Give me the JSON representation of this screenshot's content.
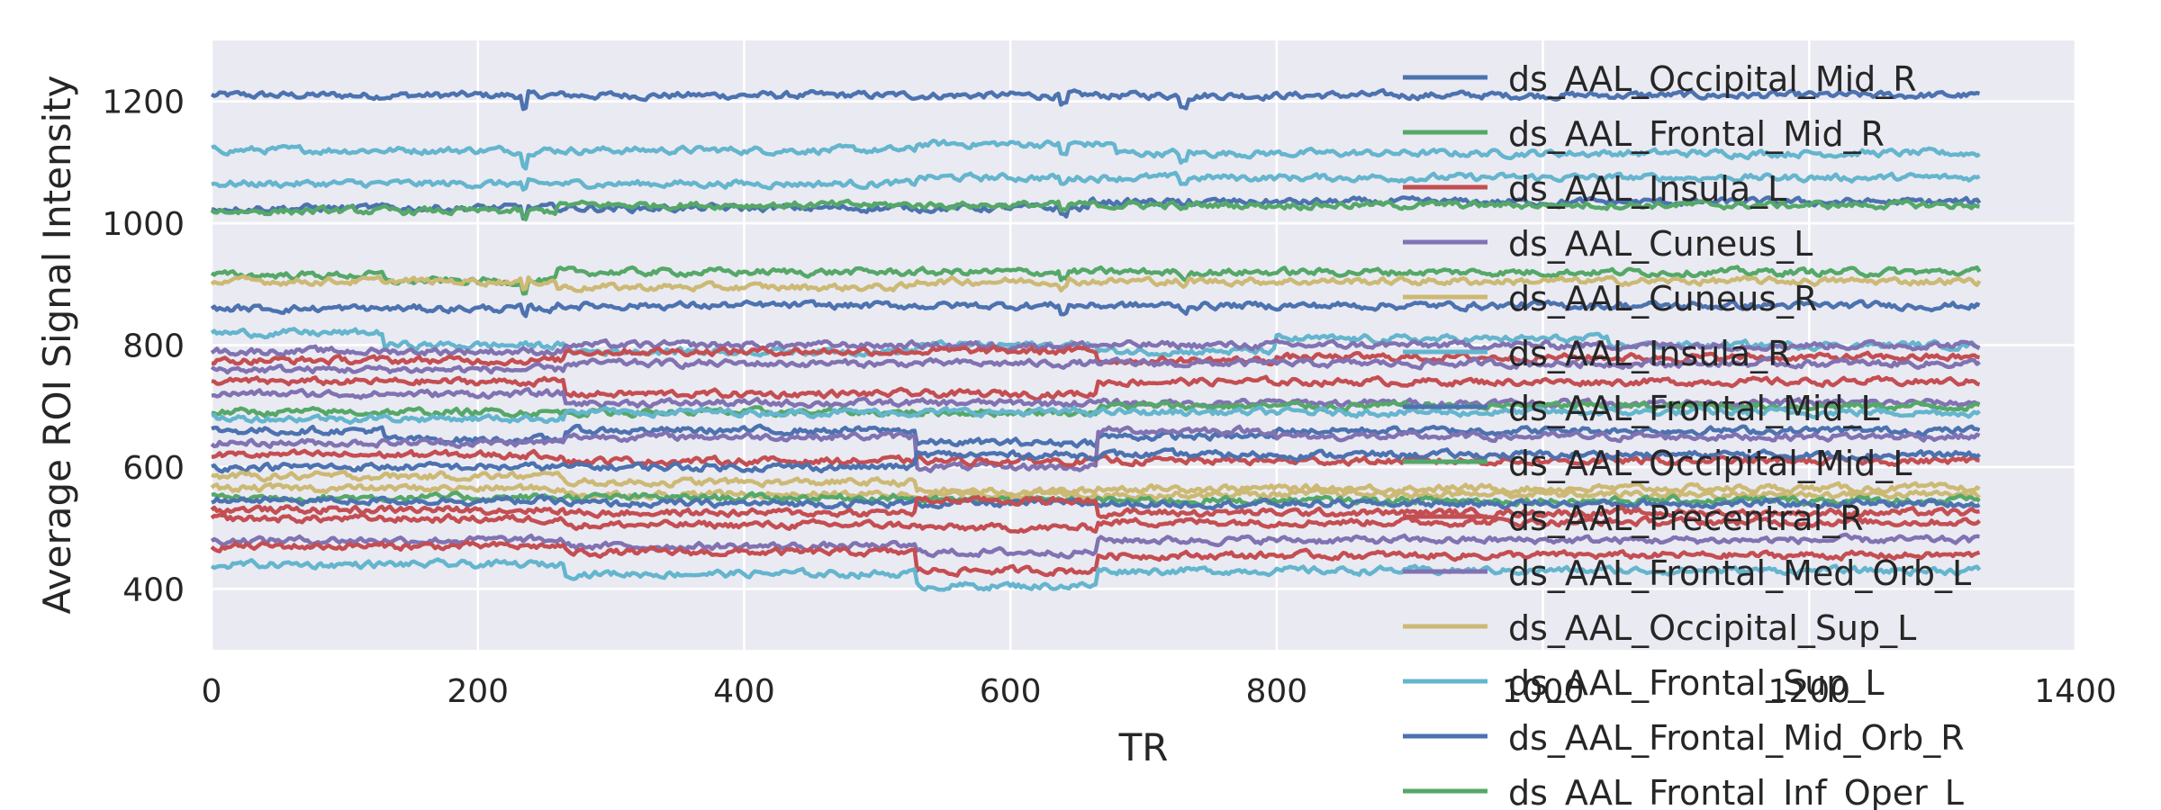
{
  "chart_data": {
    "type": "line",
    "title": "",
    "xlabel": "TR",
    "ylabel": "Average ROI Signal Intensity",
    "xlim": [
      0,
      1400
    ],
    "ylim": [
      300,
      1300
    ],
    "xticks": [
      0,
      200,
      400,
      600,
      800,
      1000,
      1200,
      1400
    ],
    "yticks": [
      400,
      600,
      800,
      1000,
      1200
    ],
    "grid": true,
    "legend_position": "right, overflowing the plot area",
    "n_timepoints": 1330,
    "palette": [
      "#4c72b0",
      "#55a868",
      "#c44e52",
      "#8172b2",
      "#ccb974",
      "#64b5cd"
    ],
    "legend_entries": [
      {
        "name": "ds_AAL_Occipital_Mid_R",
        "color": "#4c72b0"
      },
      {
        "name": "ds_AAL_Frontal_Mid_R",
        "color": "#55a868"
      },
      {
        "name": "ds_AAL_Insula_L",
        "color": "#c44e52"
      },
      {
        "name": "ds_AAL_Cuneus_L",
        "color": "#8172b2"
      },
      {
        "name": "ds_AAL_Cuneus_R",
        "color": "#ccb974"
      },
      {
        "name": "ds_AAL_Insula_R",
        "color": "#64b5cd"
      },
      {
        "name": "ds_AAL_Frontal_Mid_L",
        "color": "#4c72b0"
      },
      {
        "name": "ds_AAL_Occipital_Mid_L",
        "color": "#55a868"
      },
      {
        "name": "ds_AAL_Precentral_R",
        "color": "#c44e52"
      },
      {
        "name": "ds_AAL_Frontal_Med_Orb_L",
        "color": "#8172b2"
      },
      {
        "name": "ds_AAL_Occipital_Sup_L",
        "color": "#ccb974"
      },
      {
        "name": "ds_AAL_Frontal_Sup_L",
        "color": "#64b5cd"
      },
      {
        "name": "ds_AAL_Frontal_Mid_Orb_R",
        "color": "#4c72b0"
      },
      {
        "name": "ds_AAL_Frontal_Inf_Oper_L",
        "color": "#55a868"
      }
    ],
    "series_levels": [
      {
        "color": "#4c72b0",
        "base": 1210,
        "segments": []
      },
      {
        "color": "#64b5cd",
        "base": 1120,
        "segments": [
          [
            530,
            680,
            1130
          ],
          [
            680,
            1330,
            1115
          ]
        ]
      },
      {
        "color": "#64b5cd",
        "base": 1065,
        "segments": [
          [
            530,
            1330,
            1075
          ]
        ]
      },
      {
        "color": "#4c72b0",
        "base": 1025,
        "segments": [
          [
            660,
            1330,
            1035
          ]
        ]
      },
      {
        "color": "#55a868",
        "base": 1020,
        "segments": [
          [
            260,
            1330,
            1030
          ]
        ]
      },
      {
        "color": "#55a868",
        "base": 915,
        "segments": [
          [
            130,
            260,
            905
          ],
          [
            260,
            1330,
            920
          ]
        ]
      },
      {
        "color": "#ccb974",
        "base": 905,
        "segments": [
          [
            260,
            530,
            895
          ],
          [
            530,
            1330,
            905
          ]
        ]
      },
      {
        "color": "#4c72b0",
        "base": 860,
        "segments": [
          [
            260,
            1330,
            865
          ]
        ]
      },
      {
        "color": "#64b5cd",
        "base": 820,
        "segments": [
          [
            130,
            265,
            800
          ],
          [
            265,
            530,
            790
          ],
          [
            530,
            665,
            800
          ],
          [
            665,
            800,
            790
          ],
          [
            800,
            1050,
            810
          ],
          [
            1050,
            1330,
            800
          ]
        ]
      },
      {
        "color": "#8172b2",
        "base": 790,
        "segments": [
          [
            265,
            1330,
            800
          ]
        ]
      },
      {
        "color": "#c44e52",
        "base": 775,
        "segments": [
          [
            265,
            665,
            790
          ],
          [
            665,
            800,
            775
          ],
          [
            800,
            1330,
            780
          ]
        ]
      },
      {
        "color": "#8172b2",
        "base": 760,
        "segments": [
          [
            265,
            1330,
            770
          ]
        ]
      },
      {
        "color": "#c44e52",
        "base": 740,
        "segments": [
          [
            265,
            665,
            720
          ],
          [
            665,
            1330,
            740
          ]
        ]
      },
      {
        "color": "#8172b2",
        "base": 720,
        "segments": [
          [
            265,
            1330,
            705
          ]
        ]
      },
      {
        "color": "#55a868",
        "base": 690,
        "segments": [
          [
            665,
            1330,
            700
          ]
        ]
      },
      {
        "color": "#64b5cd",
        "base": 680,
        "segments": [
          [
            265,
            665,
            690
          ],
          [
            665,
            1330,
            690
          ]
        ]
      },
      {
        "color": "#4c72b0",
        "base": 660,
        "segments": [
          [
            130,
            265,
            645
          ],
          [
            265,
            530,
            660
          ],
          [
            530,
            665,
            640
          ],
          [
            665,
            800,
            650
          ],
          [
            800,
            1330,
            660
          ]
        ]
      },
      {
        "color": "#8172b2",
        "base": 640,
        "segments": [
          [
            265,
            530,
            650
          ],
          [
            530,
            665,
            600
          ],
          [
            665,
            800,
            660
          ],
          [
            800,
            1330,
            650
          ]
        ]
      },
      {
        "color": "#c44e52",
        "base": 620,
        "segments": [
          [
            265,
            1330,
            610
          ]
        ]
      },
      {
        "color": "#4c72b0",
        "base": 600,
        "segments": [
          [
            265,
            530,
            600
          ],
          [
            530,
            665,
            620
          ],
          [
            665,
            1330,
            620
          ]
        ]
      },
      {
        "color": "#ccb974",
        "base": 585,
        "segments": [
          [
            265,
            530,
            575
          ],
          [
            530,
            665,
            560
          ],
          [
            665,
            1330,
            565
          ]
        ]
      },
      {
        "color": "#ccb974",
        "base": 565,
        "segments": [
          [
            265,
            1330,
            555
          ]
        ]
      },
      {
        "color": "#55a868",
        "base": 550,
        "segments": [
          [
            530,
            1330,
            545
          ]
        ]
      },
      {
        "color": "#4c72b0",
        "base": 545,
        "segments": [
          [
            265,
            1330,
            540
          ]
        ]
      },
      {
        "color": "#c44e52",
        "base": 530,
        "segments": [
          [
            265,
            530,
            525
          ],
          [
            530,
            665,
            545
          ],
          [
            665,
            1330,
            525
          ]
        ]
      },
      {
        "color": "#c44e52",
        "base": 515,
        "segments": [
          [
            265,
            530,
            505
          ],
          [
            530,
            665,
            500
          ],
          [
            665,
            1330,
            510
          ]
        ]
      },
      {
        "color": "#8172b2",
        "base": 480,
        "segments": [
          [
            265,
            530,
            470
          ],
          [
            530,
            665,
            460
          ],
          [
            665,
            1330,
            480
          ]
        ]
      },
      {
        "color": "#c44e52",
        "base": 470,
        "segments": [
          [
            265,
            530,
            460
          ],
          [
            530,
            665,
            430
          ],
          [
            665,
            1330,
            455
          ]
        ]
      },
      {
        "color": "#64b5cd",
        "base": 440,
        "segments": [
          [
            265,
            530,
            425
          ],
          [
            530,
            665,
            405
          ],
          [
            665,
            1330,
            430
          ]
        ]
      }
    ]
  }
}
